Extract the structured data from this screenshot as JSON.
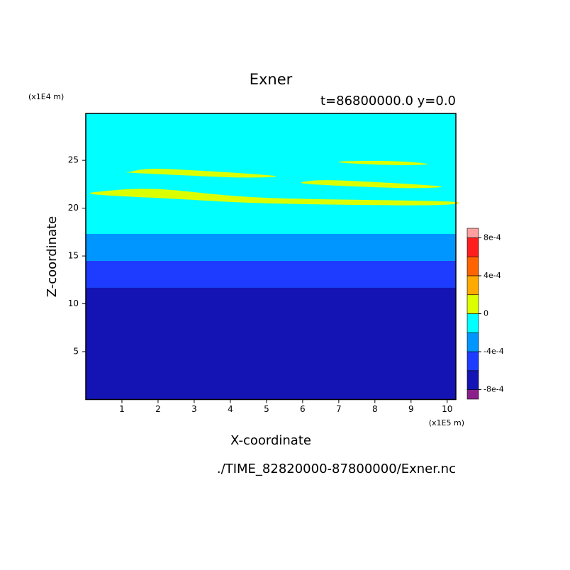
{
  "chart_data": {
    "type": "contour",
    "title": "Exner",
    "subtitle": "t=86800000.0 y=0.0",
    "x_label": "X-coordinate",
    "y_label": "Z-coordinate",
    "x_unit": "(x1E5 m)",
    "y_unit": "(x1E4 m)",
    "file": "./TIME_82820000-87800000/Exner.nc",
    "xlim": [
      0,
      10.24
    ],
    "ylim": [
      0,
      29.9
    ],
    "xticks": [
      1,
      2,
      3,
      4,
      5,
      6,
      7,
      8,
      9,
      10
    ],
    "yticks": [
      5,
      10,
      15,
      20,
      25
    ],
    "background_color": "#00ffff",
    "layers": [
      {
        "z": [
          0,
          11.7
        ],
        "color": "#1414b4"
      },
      {
        "z": [
          11.7,
          14.5
        ],
        "color": "#1e3cff"
      },
      {
        "z": [
          14.5,
          17.3
        ],
        "color": "#0096ff"
      }
    ],
    "blobs": [
      {
        "color": "#dcff00",
        "x": [
          0.31,
          1.94,
          4.88,
          9.98,
          9.39,
          5.08,
          2.33,
          0.37
        ],
        "z": [
          21.7,
          22.0,
          21.1,
          20.7,
          20.3,
          20.5,
          21.0,
          21.4
        ]
      },
      {
        "color": "#dcff00",
        "x": [
          1.22,
          2.14,
          5.18,
          4.29,
          2.33,
          1.25
        ],
        "z": [
          23.8,
          24.1,
          23.4,
          23.2,
          23.5,
          23.7
        ]
      },
      {
        "color": "#dcff00",
        "x": [
          6.1,
          7.04,
          9.78,
          8.8,
          6.25
        ],
        "z": [
          22.8,
          22.9,
          22.3,
          22.1,
          22.5
        ]
      },
      {
        "color": "#dcff00",
        "x": [
          7.12,
          8.61,
          9.47,
          8.61,
          7.24
        ],
        "z": [
          24.9,
          24.9,
          24.6,
          24.5,
          24.7
        ]
      }
    ],
    "colorbar": {
      "levels": [
        -0.0008,
        -0.0006,
        -0.0004,
        -0.0002,
        0,
        0.0002,
        0.0004,
        0.0006,
        0.0008
      ],
      "colors": [
        "#8c1e8c",
        "#1414b4",
        "#1e3cff",
        "#0096ff",
        "#00ffff",
        "#dcff00",
        "#ffaa00",
        "#ff6400",
        "#ff1e1e",
        "#ffa0a0"
      ],
      "ticks": [
        {
          "value": -0.0008,
          "label": "-8e-4"
        },
        {
          "value": -0.0004,
          "label": "-4e-4"
        },
        {
          "value": 0,
          "label": "0"
        },
        {
          "value": 0.0004,
          "label": "4e-4"
        },
        {
          "value": 0.0008,
          "label": "8e-4"
        }
      ]
    }
  }
}
